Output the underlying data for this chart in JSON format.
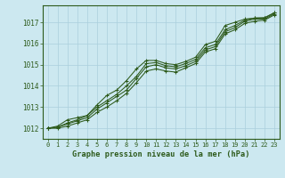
{
  "title": "Graphe pression niveau de la mer (hPa)",
  "background_color": "#cce8f0",
  "grid_color": "#aacfdc",
  "line_color": "#2d5a1b",
  "xlim": [
    -0.5,
    23.5
  ],
  "ylim": [
    1011.5,
    1017.8
  ],
  "yticks": [
    1012,
    1013,
    1014,
    1015,
    1016,
    1017
  ],
  "xticks": [
    0,
    1,
    2,
    3,
    4,
    5,
    6,
    7,
    8,
    9,
    10,
    11,
    12,
    13,
    14,
    15,
    16,
    17,
    18,
    19,
    20,
    21,
    22,
    23
  ],
  "series": [
    [
      1012.0,
      1012.1,
      1012.4,
      1012.5,
      1012.6,
      1013.1,
      1013.55,
      1013.8,
      1014.25,
      1014.8,
      1015.2,
      1015.2,
      1015.05,
      1015.0,
      1015.15,
      1015.35,
      1015.95,
      1016.1,
      1016.85,
      1017.0,
      1017.15,
      1017.2,
      1017.22,
      1017.45
    ],
    [
      1012.0,
      1012.05,
      1012.25,
      1012.4,
      1012.6,
      1013.0,
      1013.3,
      1013.6,
      1014.0,
      1014.45,
      1015.05,
      1015.1,
      1014.95,
      1014.9,
      1015.05,
      1015.25,
      1015.8,
      1015.95,
      1016.65,
      1016.85,
      1017.1,
      1017.2,
      1017.2,
      1017.45
    ],
    [
      1012.0,
      1012.05,
      1012.2,
      1012.35,
      1012.5,
      1012.9,
      1013.2,
      1013.5,
      1013.8,
      1014.35,
      1014.9,
      1015.0,
      1014.85,
      1014.8,
      1014.95,
      1015.15,
      1015.7,
      1015.85,
      1016.55,
      1016.75,
      1017.05,
      1017.15,
      1017.15,
      1017.4
    ],
    [
      1012.0,
      1012.0,
      1012.1,
      1012.25,
      1012.4,
      1012.75,
      1013.0,
      1013.3,
      1013.65,
      1014.15,
      1014.7,
      1014.8,
      1014.7,
      1014.65,
      1014.85,
      1015.05,
      1015.6,
      1015.75,
      1016.45,
      1016.65,
      1016.95,
      1017.05,
      1017.1,
      1017.35
    ]
  ]
}
